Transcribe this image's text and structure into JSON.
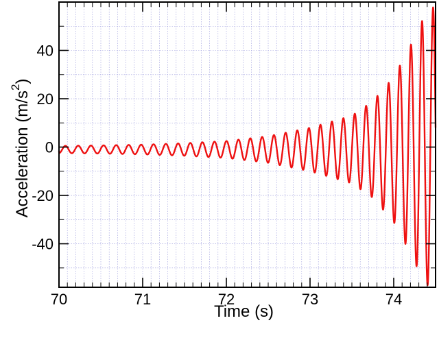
{
  "chart_data": {
    "type": "line",
    "title": "",
    "xlabel": "Time (s)",
    "ylabel_main": "Acceleration (m/s",
    "ylabel_sup": "2",
    "ylabel_tail": ")",
    "xlim": [
      70,
      74.5
    ],
    "ylim": [
      -58,
      60
    ],
    "xticks": [
      70,
      71,
      72,
      73,
      74
    ],
    "xtick_labels": [
      "70",
      "71",
      "72",
      "73",
      "74"
    ],
    "yticks": [
      -40,
      -20,
      0,
      20,
      40
    ],
    "ytick_labels": [
      "-40",
      "-20",
      "0",
      "20",
      "40"
    ],
    "x_minor_step": 0.1,
    "y_minor_step": 10,
    "grid": true,
    "grid_style": "dotted",
    "line_color": "#ee1111",
    "grid_color": "#9999dd",
    "series": [
      {
        "name": "",
        "sampled_signal": {
          "t_start": 70.0,
          "t_end": 74.5,
          "frequency_hz_start": 6.5,
          "frequency_hz_end": 7.6,
          "envelope_points": [
            [
              70.0,
              1.5
            ],
            [
              70.5,
              1.7
            ],
            [
              71.0,
              2.0
            ],
            [
              71.5,
              2.6
            ],
            [
              72.0,
              3.5
            ],
            [
              72.5,
              5.5
            ],
            [
              73.0,
              9.0
            ],
            [
              73.5,
              14.0
            ],
            [
              73.75,
              20.0
            ],
            [
              74.0,
              30.0
            ],
            [
              74.2,
              43.0
            ],
            [
              74.35,
              54.0
            ],
            [
              74.5,
              60.0
            ]
          ],
          "offset": -1.0,
          "start_value": -1.5
        }
      }
    ]
  }
}
